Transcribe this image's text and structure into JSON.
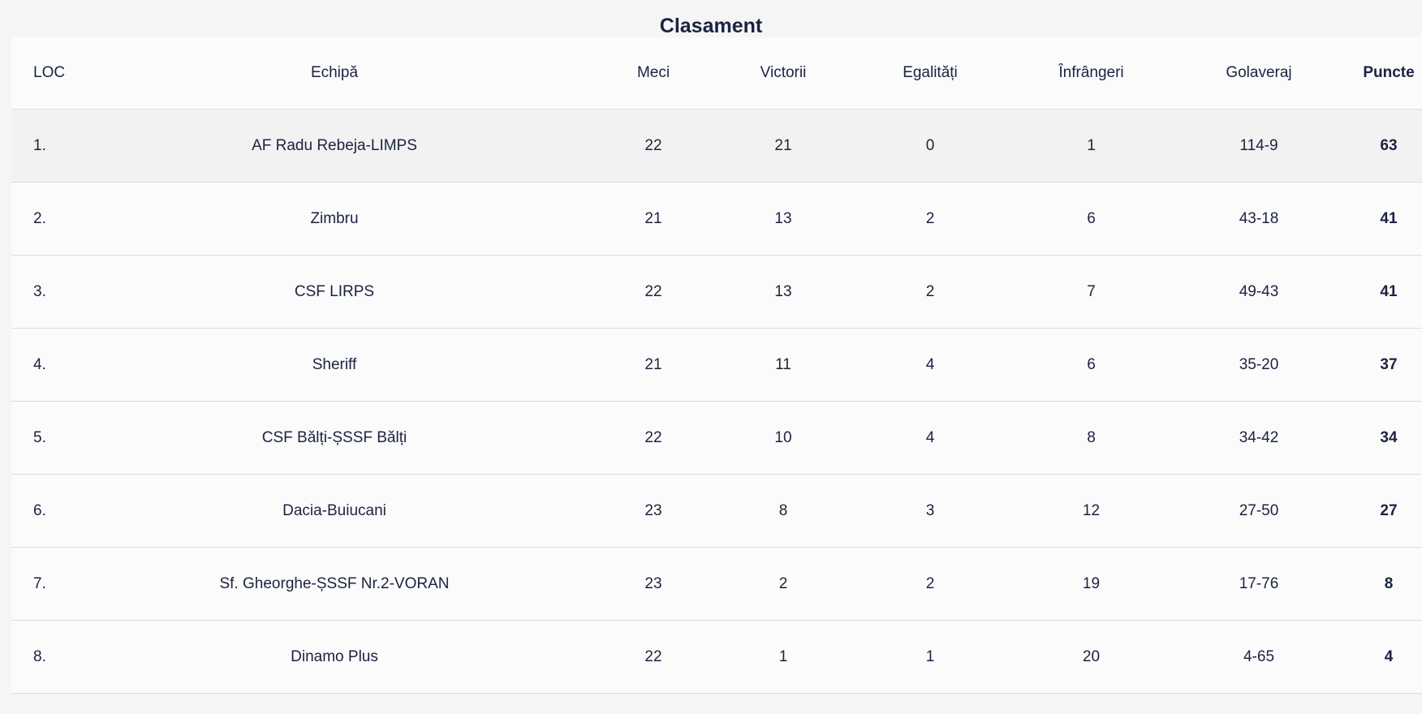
{
  "title": "Clasament",
  "columns": {
    "loc": "LOC",
    "team": "Echipă",
    "played": "Meci",
    "wins": "Victorii",
    "draws": "Egalități",
    "losses": "Înfrângeri",
    "goals": "Golaveraj",
    "points": "Puncte"
  },
  "rows": [
    {
      "loc": "1.",
      "team": "AF Radu Rebeja-LIMPS",
      "played": "22",
      "wins": "21",
      "draws": "0",
      "losses": "1",
      "goals": "114-9",
      "points": "63"
    },
    {
      "loc": "2.",
      "team": "Zimbru",
      "played": "21",
      "wins": "13",
      "draws": "2",
      "losses": "6",
      "goals": "43-18",
      "points": "41"
    },
    {
      "loc": "3.",
      "team": "CSF LIRPS",
      "played": "22",
      "wins": "13",
      "draws": "2",
      "losses": "7",
      "goals": "49-43",
      "points": "41"
    },
    {
      "loc": "4.",
      "team": "Sheriff",
      "played": "21",
      "wins": "11",
      "draws": "4",
      "losses": "6",
      "goals": "35-20",
      "points": "37"
    },
    {
      "loc": "5.",
      "team": "CSF Bălți-ȘSSF Bălți",
      "played": "22",
      "wins": "10",
      "draws": "4",
      "losses": "8",
      "goals": "34-42",
      "points": "34"
    },
    {
      "loc": "6.",
      "team": "Dacia-Buiucani",
      "played": "23",
      "wins": "8",
      "draws": "3",
      "losses": "12",
      "goals": "27-50",
      "points": "27"
    },
    {
      "loc": "7.",
      "team": "Sf. Gheorghe-ȘSSF Nr.2-VORAN",
      "played": "23",
      "wins": "2",
      "draws": "2",
      "losses": "19",
      "goals": "17-76",
      "points": "8"
    },
    {
      "loc": "8.",
      "team": "Dinamo Plus",
      "played": "22",
      "wins": "1",
      "draws": "1",
      "losses": "20",
      "goals": "4-65",
      "points": "4"
    }
  ]
}
